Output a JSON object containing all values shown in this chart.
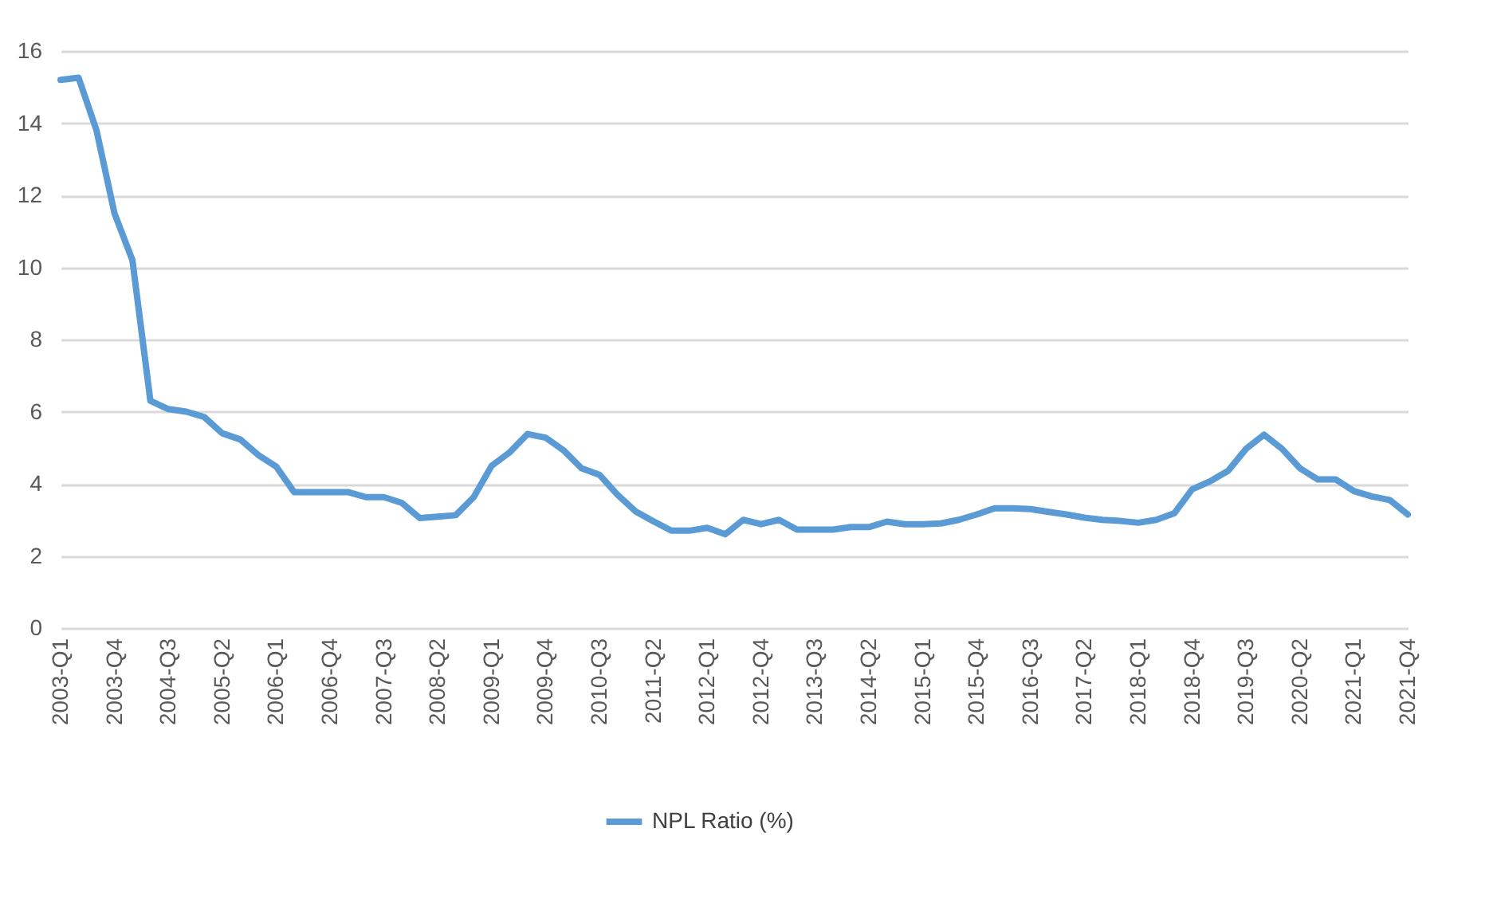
{
  "chart_data": {
    "type": "line",
    "categories": [
      "2003-Q1",
      null,
      null,
      "2003-Q4",
      null,
      null,
      "2004-Q3",
      null,
      null,
      "2005-Q2",
      null,
      null,
      "2006-Q1",
      null,
      null,
      "2006-Q4",
      null,
      null,
      "2007-Q3",
      null,
      null,
      "2008-Q2",
      null,
      null,
      "2009-Q1",
      null,
      null,
      "2009-Q4",
      null,
      null,
      "2010-Q3",
      null,
      null,
      "2011-Q2",
      null,
      null,
      "2012-Q1",
      null,
      null,
      "2012-Q4",
      null,
      null,
      "2013-Q3",
      null,
      null,
      "2014-Q2",
      null,
      null,
      "2015-Q1",
      null,
      null,
      "2015-Q4",
      null,
      null,
      "2016-Q3",
      null,
      null,
      "2017-Q2",
      null,
      null,
      "2018-Q1",
      null,
      null,
      "2018-Q4",
      null,
      null,
      "2019-Q3",
      null,
      null,
      "2020-Q2",
      null,
      null,
      "2021-Q1",
      null,
      null,
      "2021-Q4"
    ],
    "series": [
      {
        "name": "NPL Ratio (%)",
        "color": "#5b9bd5",
        "values": [
          15.2,
          15.26,
          13.8,
          11.5,
          10.2,
          6.3,
          6.07,
          6.0,
          5.85,
          5.4,
          5.23,
          4.8,
          4.48,
          3.77,
          3.77,
          3.77,
          3.77,
          3.63,
          3.63,
          3.47,
          3.05,
          3.09,
          3.13,
          3.63,
          4.5,
          4.87,
          5.38,
          5.28,
          4.93,
          4.43,
          4.25,
          3.7,
          3.24,
          2.96,
          2.7,
          2.7,
          2.78,
          2.6,
          3.0,
          2.88,
          3.0,
          2.73,
          2.73,
          2.73,
          2.8,
          2.8,
          2.95,
          2.88,
          2.88,
          2.9,
          3.0,
          3.15,
          3.32,
          3.32,
          3.3,
          3.22,
          3.15,
          3.06,
          3.0,
          2.97,
          2.92,
          3.0,
          3.18,
          3.85,
          4.07,
          4.36,
          4.97,
          5.36,
          4.97,
          4.43,
          4.12,
          4.12,
          3.8,
          3.65,
          3.55,
          3.15
        ]
      }
    ],
    "ylim": [
      0,
      16
    ],
    "yticks": [
      0,
      2,
      4,
      6,
      8,
      10,
      12,
      14,
      16
    ],
    "grid": "y",
    "legend": "bottom",
    "marker": "none",
    "line_style": "solid"
  }
}
